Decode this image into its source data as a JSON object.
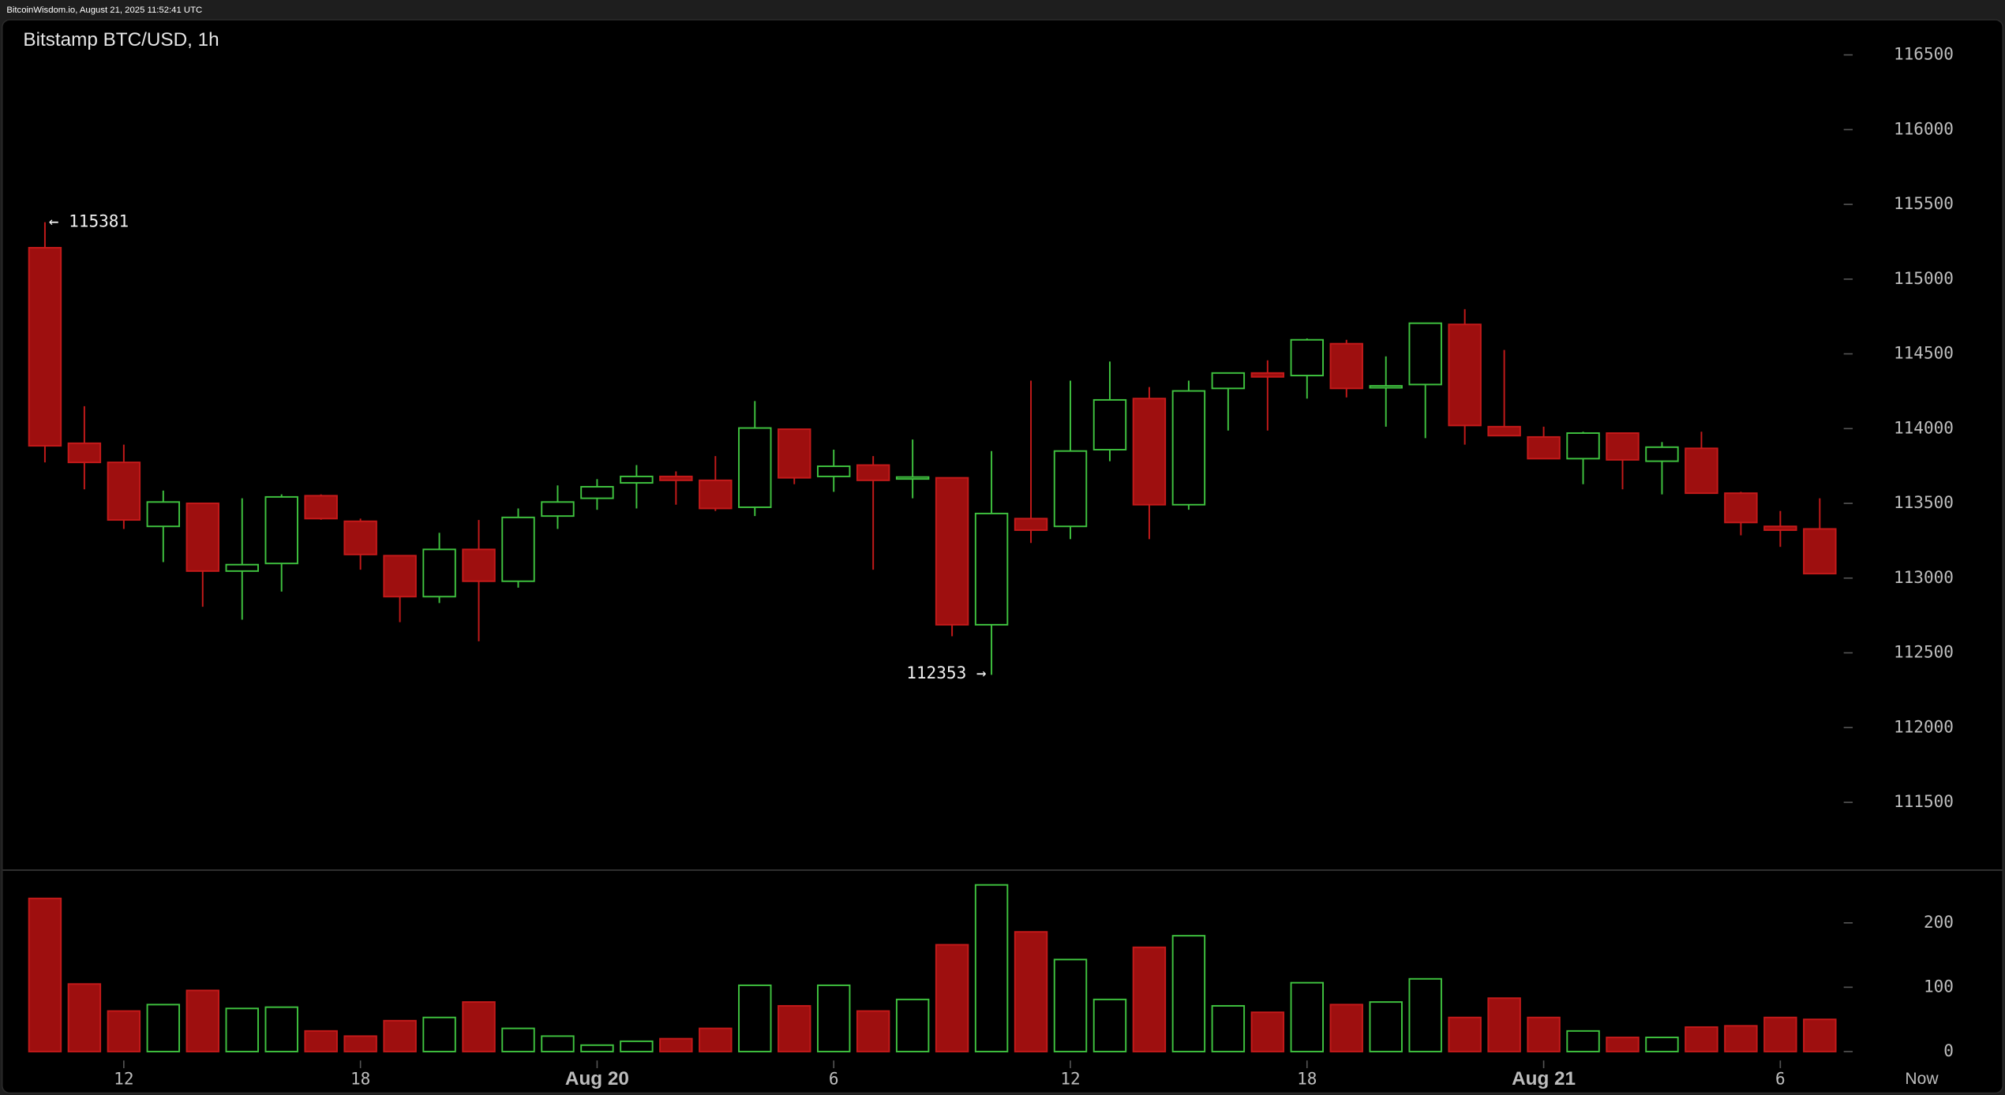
{
  "header": "BitcoinWisdom.io, August 21, 2025 11:52:41 UTC",
  "chart_data": [
    {
      "type": "candlestick",
      "title": "Bitstamp BTC/USD, 1h",
      "open": [
        115210,
        113902,
        113774,
        113346,
        113500,
        113047,
        113098,
        113551,
        113380,
        113150,
        112876,
        113192,
        112979,
        113415,
        113534,
        113637,
        113680,
        113654,
        113474,
        113996,
        113680,
        113756,
        113668,
        113671,
        112688,
        113398,
        113346,
        113859,
        114201,
        113491,
        114269,
        114372,
        114355,
        114568,
        114280,
        114295,
        114697,
        114013,
        113944,
        113799,
        113970,
        113782,
        113868,
        113568,
        113346,
        113329
      ],
      "high": [
        115381,
        114150,
        113893,
        113585,
        113500,
        113534,
        113560,
        113560,
        113398,
        113150,
        113303,
        113389,
        113466,
        113620,
        113662,
        113756,
        113714,
        113816,
        114184,
        113996,
        113859,
        113816,
        113927,
        113671,
        113850,
        114321,
        114321,
        114449,
        114278,
        114321,
        114372,
        114457,
        114603,
        114594,
        114483,
        114705,
        114799,
        114526,
        114013,
        113979,
        113970,
        113910,
        113979,
        113577,
        113449,
        113534
      ],
      "low": [
        113774,
        113594,
        113329,
        113107,
        112808,
        112722,
        112910,
        113390,
        113056,
        112705,
        112833,
        112577,
        112936,
        113329,
        113457,
        113466,
        113491,
        113449,
        113415,
        113628,
        113577,
        113056,
        113534,
        112611,
        112353,
        113235,
        113261,
        113782,
        113261,
        113457,
        113987,
        113987,
        114201,
        114209,
        114013,
        113936,
        113893,
        113953,
        113799,
        113628,
        113594,
        113560,
        113568,
        113286,
        113209,
        113030
      ],
      "close": [
        113885,
        113774,
        113389,
        113509,
        113047,
        113090,
        113543,
        113398,
        113158,
        112876,
        113192,
        112979,
        113406,
        113509,
        113611,
        113680,
        113654,
        113466,
        114004,
        113671,
        113748,
        113654,
        113676,
        112688,
        113432,
        113321,
        113850,
        114192,
        113491,
        114252,
        114372,
        114346,
        114594,
        114269,
        114286,
        114705,
        114021,
        113953,
        113799,
        113970,
        113791,
        113876,
        113568,
        113372,
        113321,
        113030
      ],
      "up_color": "#3fc23f",
      "down_color": "#c41a1a",
      "down_fill": "#9e0f0f",
      "ylim": [
        111055,
        116739
      ],
      "yticks": [
        111500,
        112000,
        112500,
        113000,
        113500,
        114000,
        114500,
        115000,
        115500,
        116000,
        116500
      ],
      "annotations": [
        {
          "text": "← 115381",
          "value": 115381
        },
        {
          "text": "112353 →",
          "value": 112353
        }
      ],
      "grid": false
    },
    {
      "type": "bar",
      "values": [
        238,
        105,
        63,
        73,
        95,
        67,
        69,
        32,
        24,
        48,
        53,
        77,
        36,
        24,
        10,
        16,
        20,
        36,
        103,
        71,
        103,
        63,
        81,
        166,
        259,
        186,
        143,
        81,
        162,
        180,
        71,
        61,
        107,
        73,
        77,
        113,
        53,
        83,
        53,
        32,
        22,
        22,
        38,
        40,
        53,
        50
      ],
      "categories": [
        null,
        null,
        "12",
        null,
        null,
        null,
        null,
        null,
        "18",
        null,
        null,
        null,
        null,
        null,
        "Aug 20",
        null,
        null,
        null,
        null,
        null,
        "6",
        null,
        null,
        null,
        null,
        null,
        "12",
        null,
        null,
        null,
        null,
        null,
        "18",
        null,
        null,
        null,
        null,
        null,
        "Aug 21",
        null,
        null,
        null,
        null,
        null,
        "6",
        null
      ],
      "x_end_label": "Now",
      "ylim": [
        0,
        280
      ],
      "yticks": [
        0,
        100,
        200
      ],
      "grid": false
    }
  ]
}
